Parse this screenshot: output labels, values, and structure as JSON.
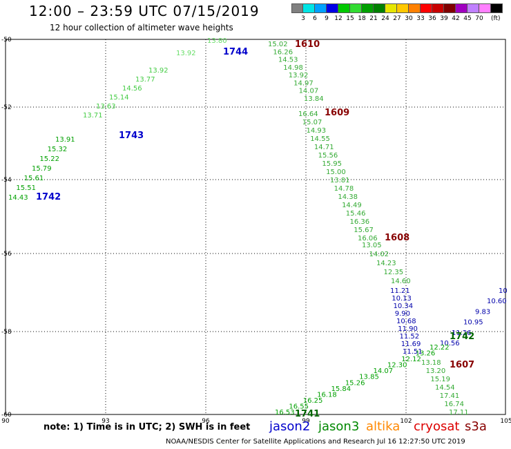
{
  "header": {
    "title": "12:00 – 23:59 UTC 07/15/2019",
    "subtitle": "12 hour collection of altimeter wave heights"
  },
  "colorbar": {
    "colors": [
      "#808080",
      "#00e5e5",
      "#00a0ff",
      "#0000e6",
      "#00c800",
      "#32dc32",
      "#00a000",
      "#008000",
      "#e6e600",
      "#ffc800",
      "#ff8000",
      "#ff0000",
      "#c80000",
      "#800000",
      "#a000c0",
      "#c080ff",
      "#ff80ff",
      "#000000"
    ],
    "labels": [
      "3",
      "6",
      "9",
      "12",
      "15",
      "18",
      "21",
      "24",
      "27",
      "30",
      "33",
      "36",
      "39",
      "42",
      "45",
      "70"
    ],
    "unit": "(ft)"
  },
  "axes": {
    "x_ticks": [
      "90",
      "93",
      "96",
      "99",
      "102",
      "105"
    ],
    "y_ticks": [
      "-50",
      "-52",
      "-54",
      "-56",
      "-58",
      "-60"
    ]
  },
  "tracks": [
    {
      "id": "1742",
      "color": "#00a000",
      "label_color": "#0000cc",
      "values": [
        "14.43",
        "15.51",
        "15.61",
        "15.79",
        "15.22",
        "15.32",
        "13.91"
      ]
    },
    {
      "id": "1743",
      "color": "#44cc44",
      "label_color": "#0000cc",
      "values": [
        "13.71",
        "13.63",
        "15.14",
        "14.56",
        "13.77",
        "13.92"
      ]
    },
    {
      "id": "1744",
      "color": "#66dd66",
      "label_color": "#0000cc",
      "values": [
        "13.92",
        "13.80"
      ]
    },
    {
      "id": "1610",
      "color": "#33aa33",
      "label_color": "#880000",
      "values": [
        "15.02",
        "16.26",
        "14.53",
        "14.98",
        "13.92",
        "14.97",
        "14.07",
        "13.84"
      ]
    },
    {
      "id": "1609",
      "color": "#33aa33",
      "label_color": "#880000",
      "values": [
        "16.64",
        "15.07",
        "14.93",
        "14.55",
        "14.71",
        "15.56",
        "15.95",
        "15.00",
        "13.81",
        "14.78",
        "14.38",
        "14.49",
        "15.46",
        "16.36",
        "15.67",
        "16.06"
      ]
    },
    {
      "id": "1608",
      "color": "#33aa33",
      "label_color": "#880000",
      "values": [
        "13.05",
        "14.02",
        "14.23",
        "12.35",
        "14.60"
      ]
    },
    {
      "id": "jason2-asc",
      "color": "#0000aa",
      "label_color": "#0000aa",
      "values": [
        "11.21",
        "10.13",
        "10.34",
        "9.90",
        "10.68",
        "11.90",
        "11.52",
        "11.69",
        "11.51"
      ]
    },
    {
      "id": "jason2-ne",
      "color": "#0000aa",
      "label_color": "#0000aa",
      "values": [
        "10.56",
        "11.26",
        "10.95",
        "9.83",
        "10.60",
        "10"
      ]
    },
    {
      "id": "1742b",
      "color": "#00a000",
      "label_color": "#006600",
      "values": [
        "12.22",
        "13.26",
        "12.12",
        "12.30",
        "14.07",
        "13.85",
        "15.26",
        "15.84",
        "16.18",
        "16.25",
        "16.55",
        "16.53"
      ]
    },
    {
      "id": "1607",
      "color": "#33aa33",
      "label_color": "#880000",
      "values": [
        "13.18",
        "13.20",
        "15.19",
        "14.54",
        "17.41",
        "16.74",
        "17.11"
      ]
    },
    {
      "id": "1741",
      "color": "#00a000",
      "label_color": "#006600",
      "values": []
    }
  ],
  "track_labels": {
    "t1742": "1742",
    "t1743": "1743",
    "t1744": "1744",
    "t1610": "1610",
    "t1609": "1609",
    "t1608": "1608",
    "t1607": "1607",
    "t1742b": "1742",
    "t1741": "1741"
  },
  "footer": {
    "note": "note:  1) Time is in UTC;  2) SWH is in feet",
    "satellites": [
      {
        "name": "jason2",
        "color": "#0000cc"
      },
      {
        "name": "jason3",
        "color": "#008800"
      },
      {
        "name": "altika",
        "color": "#ff8800"
      },
      {
        "name": "cryosat",
        "color": "#dd0000"
      },
      {
        "name": "s3a",
        "color": "#880000"
      }
    ],
    "credit": "NOAA/NESDIS Center for Satellite Applications and Research     Jul 16 12:27:50 UTC 2019"
  }
}
